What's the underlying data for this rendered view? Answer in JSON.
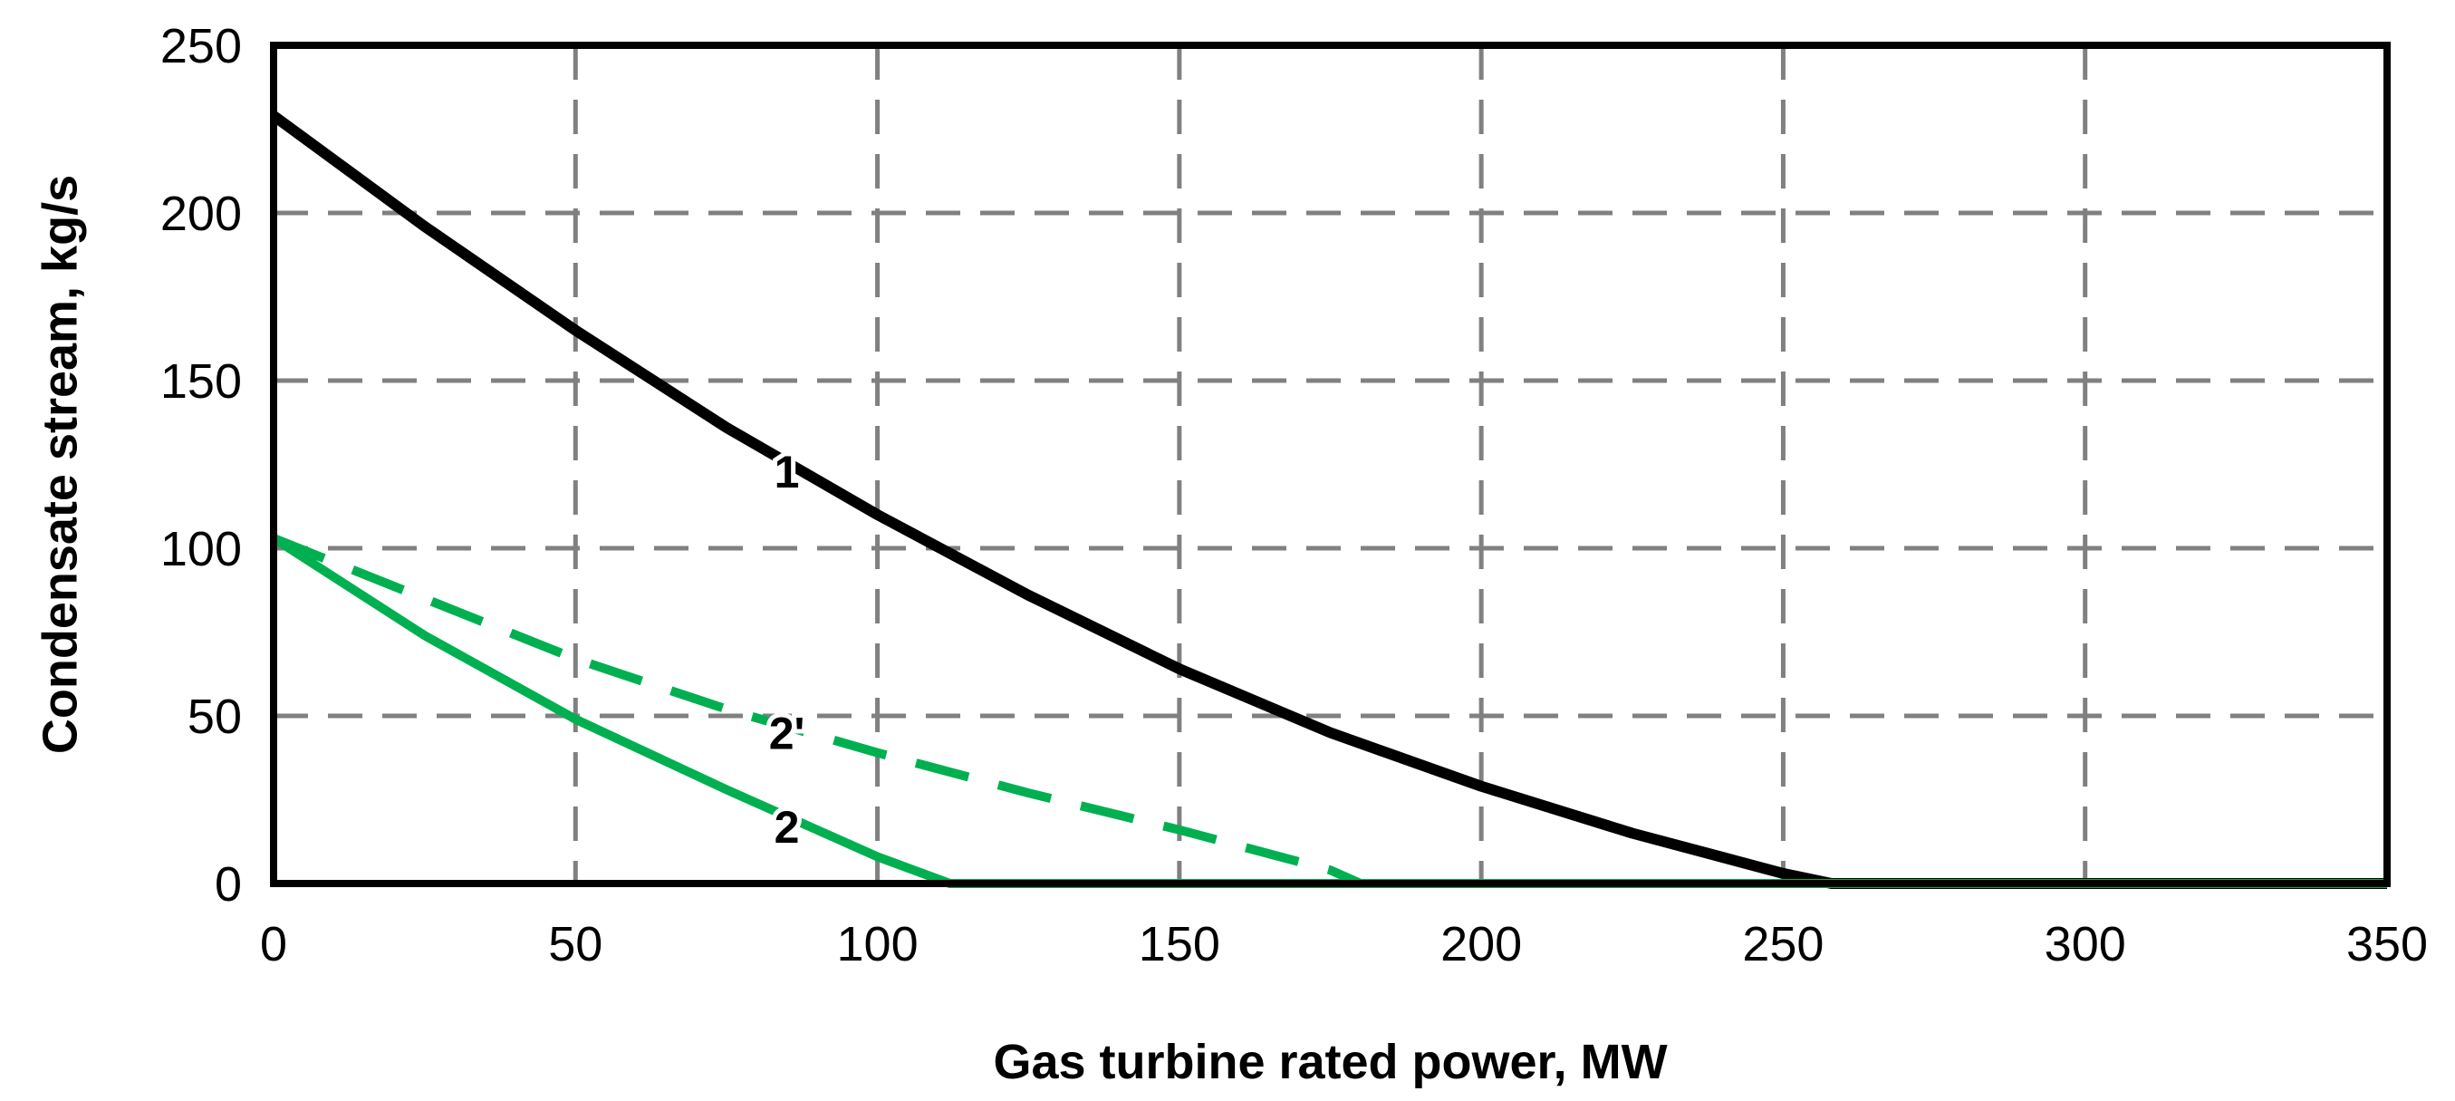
{
  "chart_data": {
    "type": "line",
    "title": "",
    "xlabel": "Gas turbine rated power, MW",
    "ylabel": "Condensate stream, kg/s",
    "xlim": [
      0,
      350
    ],
    "ylim": [
      0,
      250
    ],
    "xticks": [
      0,
      50,
      100,
      150,
      200,
      250,
      300,
      350
    ],
    "yticks": [
      0,
      50,
      100,
      150,
      200,
      250
    ],
    "grid": true,
    "legend": "none",
    "colors": {
      "black": "#000000",
      "green": "#00b050",
      "grid": "#808080"
    },
    "series": [
      {
        "name": "1",
        "color": "#000000",
        "style": "solid",
        "x": [
          0,
          25,
          50,
          75,
          100,
          125,
          150,
          175,
          200,
          225,
          250,
          258,
          350
        ],
        "y": [
          229,
          196,
          165,
          136,
          110,
          86,
          64,
          45,
          29,
          15,
          3,
          0,
          0
        ],
        "label": "1",
        "label_at": [
          85,
          123
        ]
      },
      {
        "name": "2'",
        "color": "#00b050",
        "style": "dashed",
        "x": [
          0,
          25,
          50,
          75,
          100,
          125,
          150,
          175,
          180,
          350
        ],
        "y": [
          103,
          85,
          67,
          52,
          39,
          27,
          16,
          4,
          0,
          0
        ],
        "label": "2'",
        "label_at": [
          85,
          45
        ]
      },
      {
        "name": "2",
        "color": "#00b050",
        "style": "solid",
        "x": [
          0,
          25,
          50,
          75,
          100,
          112,
          350
        ],
        "y": [
          103,
          74,
          49,
          28,
          8,
          0,
          0
        ],
        "label": "2",
        "label_at": [
          85,
          17
        ]
      }
    ]
  }
}
